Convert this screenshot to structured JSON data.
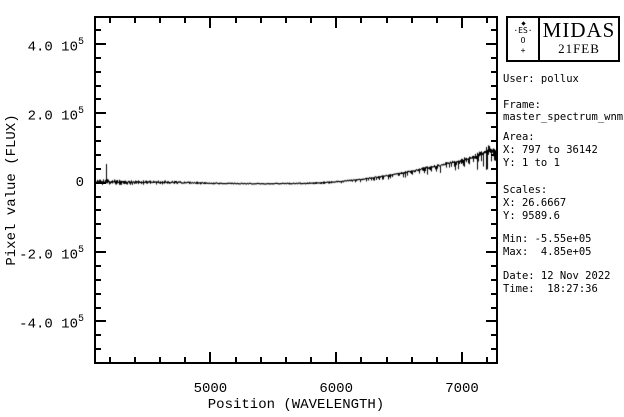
{
  "colors": {
    "foreground": "#000000",
    "background": "#ffffff"
  },
  "header": {
    "title": "MIDAS",
    "version": "21FEB",
    "eso": {
      "row1": "·ES·",
      "row2": "O",
      "row3": "+"
    }
  },
  "panel": {
    "user": "User: pollux",
    "frame_label": "Frame:",
    "frame_value": "master_spectrum_wnm",
    "area_label": "Area:",
    "area_x": "X: 797 to 36142",
    "area_y": "Y: 1 to 1",
    "scales_label": "Scales:",
    "scales_x": "X: 26.6667",
    "scales_y": "Y: 9589.6",
    "min": "Min: -5.55e+05",
    "max": "Max:  4.85e+05",
    "date": "Date: 12 Nov 2022",
    "time": "Time:  18:27:36"
  },
  "chart_data": {
    "type": "line",
    "title": "",
    "xlabel": "Position (WAVELENGTH)",
    "ylabel": "Pixel value (FLUX)",
    "xlim": [
      4091,
      7270
    ],
    "ylim": [
      -517000,
      475000
    ],
    "grid": false,
    "legend": "none",
    "x_major_ticks": [
      5000,
      6000,
      7000
    ],
    "x_tick_labels": [
      "5000",
      "6000",
      "7000"
    ],
    "x_minor_step": 200,
    "y_major_ticks": [
      400000,
      200000,
      0,
      -200000,
      -400000
    ],
    "y_tick_labels": [
      {
        "m": "4.0 10",
        "e": "5"
      },
      {
        "m": "2.0 10",
        "e": "5"
      },
      {
        "m": "0",
        "e": ""
      },
      {
        "m": "-2.0 10",
        "e": "5"
      },
      {
        "m": "-4.0 10",
        "e": "5"
      }
    ],
    "y_minor_step": 40000,
    "series": [
      {
        "name": "master_spectrum_wnm",
        "color": "#000000",
        "description": "Noisy stellar spectrum: flat near zero flux from 4100-6000 A, rising continuum with absorption dips beyond 6300 A, strong noisy peak ~9e4 near 7200 A",
        "envelope": [
          [
            4091,
            1000,
            11000,
            8000
          ],
          [
            4300,
            500,
            9000,
            7000
          ],
          [
            4700,
            0,
            6000,
            5000
          ],
          [
            5000,
            -1500,
            3500,
            3500
          ],
          [
            5400,
            -2500,
            2500,
            3000
          ],
          [
            5750,
            -1500,
            2500,
            4000
          ],
          [
            6000,
            3000,
            2500,
            6000
          ],
          [
            6200,
            10000,
            3000,
            9000
          ],
          [
            6400,
            20000,
            3500,
            12000
          ],
          [
            6600,
            33000,
            4500,
            16000
          ],
          [
            6750,
            44000,
            5500,
            22000
          ],
          [
            6820,
            48000,
            6000,
            52000
          ],
          [
            6880,
            54000,
            7000,
            20000
          ],
          [
            7000,
            62000,
            9000,
            28000
          ],
          [
            7120,
            74000,
            14000,
            50000
          ],
          [
            7210,
            90000,
            24000,
            65000
          ],
          [
            7270,
            84000,
            16000,
            45000
          ]
        ],
        "spikes": [
          [
            4172,
            54000
          ]
        ]
      }
    ]
  }
}
